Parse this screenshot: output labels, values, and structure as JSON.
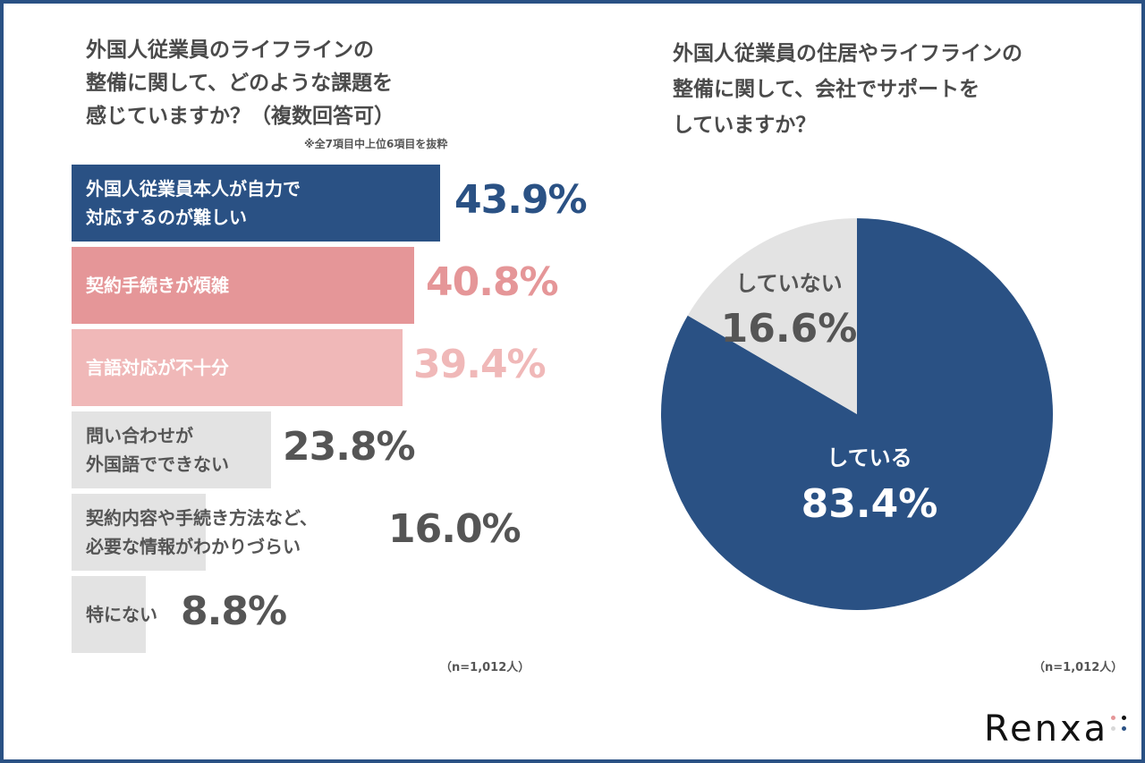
{
  "chart_data": [
    {
      "type": "bar",
      "orientation": "horizontal",
      "title": "外国人従業員のライフラインの\n整備に関して、どのような課題を\n感じていますか？（複数回答可）",
      "note": "※全7項目中上位6項目を抜粋",
      "categories": [
        "外国人従業員本人が自力で\n対応するのが難しい",
        "契約手続きが煩雑",
        "言語対応が不十分",
        "問い合わせが\n外国語でできない",
        "契約内容や手続き方法など、\n必要な情報がわかりづらい",
        "特にない"
      ],
      "values": [
        43.9,
        40.8,
        39.4,
        23.8,
        16.0,
        8.8
      ],
      "value_labels": [
        "43.9%",
        "40.8%",
        "39.4%",
        "23.8%",
        "16.0%",
        "8.8%"
      ],
      "colors": [
        "#2a5184",
        "#e59698",
        "#f0b8b8",
        "#e3e3e3",
        "#e3e3e3",
        "#e3e3e3"
      ],
      "label_colors": [
        "#ffffff",
        "#ffffff",
        "#ffffff",
        "#555555",
        "#555555",
        "#555555"
      ],
      "value_colors": [
        "#2a5184",
        "#e59698",
        "#f0b8b8",
        "#555555",
        "#555555",
        "#555555"
      ],
      "sample": "（n=1,012人）"
    },
    {
      "type": "pie",
      "title": "外国人従業員の住居やライフラインの\n整備に関して、会社でサポートを\nしていますか？",
      "categories": [
        "している",
        "していない"
      ],
      "values": [
        83.4,
        16.6
      ],
      "value_labels": [
        "83.4%",
        "16.6%"
      ],
      "colors": [
        "#2a5184",
        "#e3e3e3"
      ],
      "sample": "（n=1,012人）"
    }
  ],
  "brand": {
    "name": "Renxa",
    "dot_colors": [
      "#e59698",
      "#111111",
      "#d8d8d8",
      "#2a5184"
    ]
  }
}
